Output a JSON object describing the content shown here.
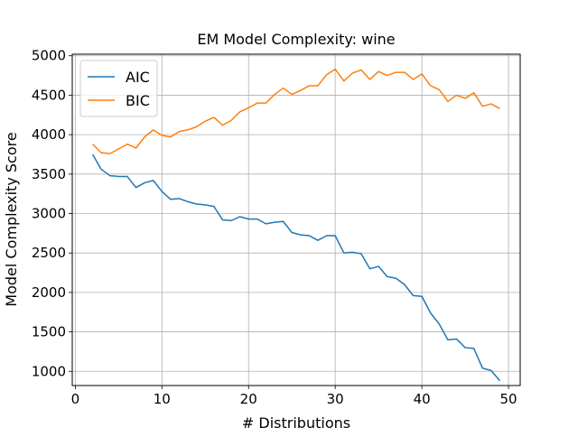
{
  "chart_data": {
    "type": "line",
    "title": "EM Model Complexity: wine",
    "xlabel": "# Distributions",
    "ylabel": "Model Complexity Score",
    "xlim": [
      -0.35,
      51.35
    ],
    "ylim": [
      820,
      5020
    ],
    "xticks": [
      0,
      10,
      20,
      30,
      40,
      50
    ],
    "yticks": [
      1000,
      1500,
      2000,
      2500,
      3000,
      3500,
      4000,
      4500,
      5000
    ],
    "grid": true,
    "legend_position": "top-left",
    "x": [
      2,
      3,
      4,
      5,
      6,
      7,
      8,
      9,
      10,
      11,
      12,
      13,
      14,
      15,
      16,
      17,
      18,
      19,
      20,
      21,
      22,
      23,
      24,
      25,
      26,
      27,
      28,
      29,
      30,
      31,
      32,
      33,
      34,
      35,
      36,
      37,
      38,
      39,
      40,
      41,
      42,
      43,
      44,
      45,
      46,
      47,
      48,
      49
    ],
    "series": [
      {
        "name": "AIC",
        "color": "#1f77b4",
        "values": [
          3750,
          3560,
          3480,
          3470,
          3470,
          3330,
          3390,
          3420,
          3280,
          3180,
          3190,
          3150,
          3120,
          3110,
          3090,
          2920,
          2910,
          2960,
          2930,
          2930,
          2870,
          2890,
          2900,
          2760,
          2730,
          2720,
          2660,
          2720,
          2720,
          2500,
          2510,
          2490,
          2300,
          2330,
          2200,
          2180,
          2100,
          1960,
          1950,
          1740,
          1600,
          1400,
          1410,
          1300,
          1290,
          1040,
          1010,
          880
        ]
      },
      {
        "name": "BIC",
        "color": "#ff7f0e",
        "values": [
          3880,
          3770,
          3760,
          3820,
          3880,
          3830,
          3970,
          4060,
          3990,
          3970,
          4040,
          4060,
          4100,
          4170,
          4220,
          4120,
          4180,
          4290,
          4340,
          4400,
          4400,
          4510,
          4590,
          4510,
          4560,
          4620,
          4620,
          4760,
          4830,
          4680,
          4780,
          4820,
          4700,
          4800,
          4750,
          4790,
          4790,
          4700,
          4770,
          4620,
          4570,
          4420,
          4500,
          4460,
          4530,
          4360,
          4390,
          4330
        ]
      }
    ]
  }
}
